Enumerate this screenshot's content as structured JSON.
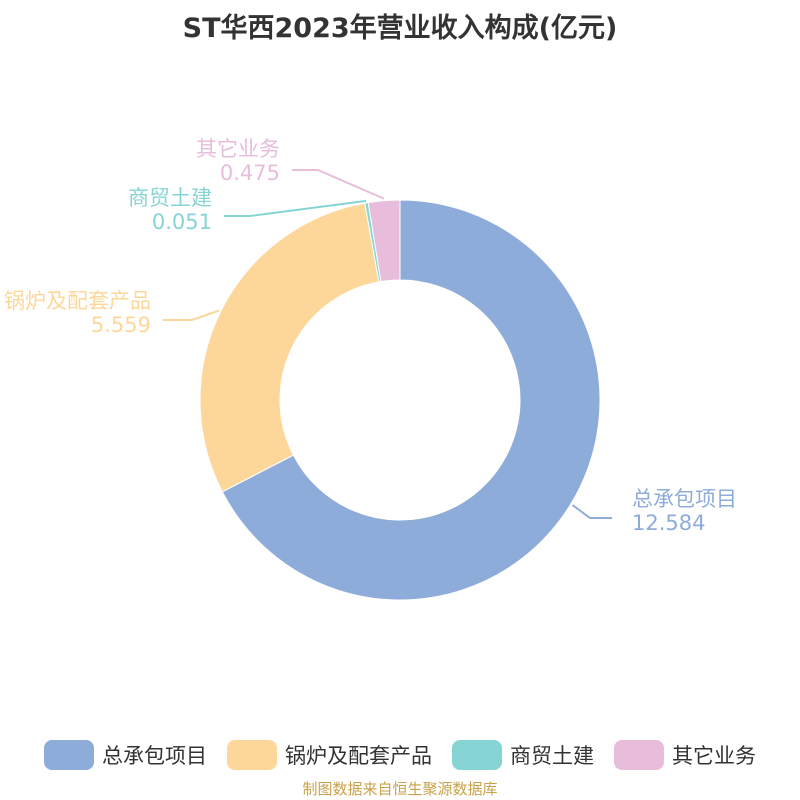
{
  "chart_data": {
    "type": "pie",
    "style": "donut",
    "title": "ST华西2023年营业收入构成(亿元)",
    "categories": [
      "总承包项目",
      "锅炉及配套产品",
      "商贸土建",
      "其它业务"
    ],
    "values": [
      12.584,
      5.559,
      0.051,
      0.475
    ],
    "value_labels": [
      "12.584",
      "5.559",
      "0.051",
      "0.475"
    ],
    "colors": [
      "#8eacd9",
      "#fdd79a",
      "#86d4d4",
      "#e8bcdb"
    ],
    "legend_position": "bottom"
  },
  "source_note": "制图数据来自恒生聚源数据库"
}
